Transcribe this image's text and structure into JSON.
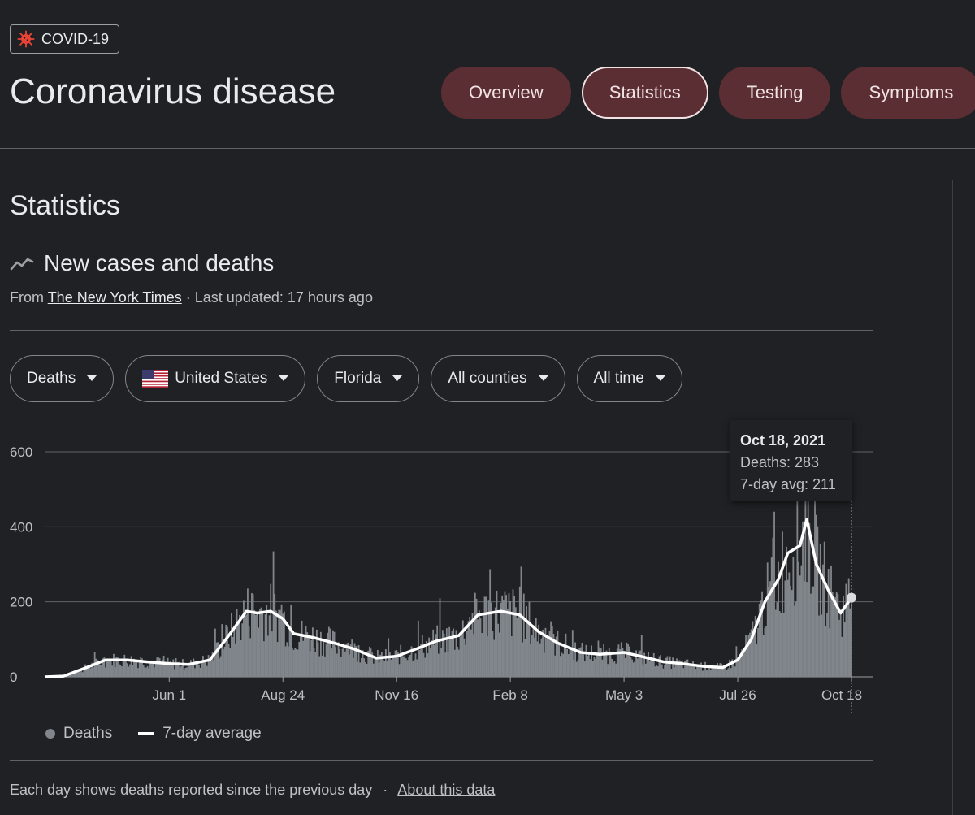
{
  "badge": {
    "label": "COVID-19",
    "icon": "virus-icon",
    "color": "#ea4335"
  },
  "page_title": "Coronavirus disease",
  "tabs": [
    {
      "label": "Overview",
      "active": false
    },
    {
      "label": "Statistics",
      "active": true
    },
    {
      "label": "Testing",
      "active": false
    },
    {
      "label": "Symptoms",
      "active": false
    }
  ],
  "section_title": "Statistics",
  "card": {
    "title": "New cases and deaths",
    "icon": "trending-icon",
    "source_prefix": "From",
    "source_link": "The New York Times",
    "updated": "· Last updated: 17 hours ago"
  },
  "filters": [
    {
      "label": "Deaths",
      "icon": ""
    },
    {
      "label": "United States",
      "icon": "us-flag-icon"
    },
    {
      "label": "Florida",
      "icon": ""
    },
    {
      "label": "All counties",
      "icon": ""
    },
    {
      "label": "All time",
      "icon": ""
    }
  ],
  "tooltip": {
    "date": "Oct 18, 2021",
    "deaths": "Deaths: 283",
    "avg": "7-day avg: 211"
  },
  "legend": {
    "deaths": "Deaths",
    "avg": "7-day average"
  },
  "footer": {
    "text": "Each day shows deaths reported since the previous day",
    "separator": "·",
    "link": "About this data"
  },
  "colors": {
    "bars": "#80868b",
    "line": "#ffffff",
    "tab_bg": "#5b2e34",
    "grid": "#5f6368"
  },
  "chart_data": {
    "type": "bar",
    "title": "",
    "ylim": [
      0,
      600
    ],
    "yticks": [
      0,
      200,
      400,
      600
    ],
    "xticks": [
      "Jun 1",
      "Aug 24",
      "Nov 16",
      "Feb 8",
      "May 3",
      "Jul 26",
      "Oct 18"
    ],
    "x_start": "2020-03-01",
    "x_end": "2021-10-18",
    "series": [
      {
        "name": "7-day average",
        "type": "line",
        "points": [
          [
            "2020-03-01",
            0
          ],
          [
            "2020-03-15",
            2
          ],
          [
            "2020-04-01",
            25
          ],
          [
            "2020-04-15",
            45
          ],
          [
            "2020-05-01",
            45
          ],
          [
            "2020-05-15",
            40
          ],
          [
            "2020-06-01",
            35
          ],
          [
            "2020-06-15",
            33
          ],
          [
            "2020-07-01",
            45
          ],
          [
            "2020-07-15",
            110
          ],
          [
            "2020-07-28",
            175
          ],
          [
            "2020-08-05",
            170
          ],
          [
            "2020-08-15",
            175
          ],
          [
            "2020-08-24",
            155
          ],
          [
            "2020-09-01",
            115
          ],
          [
            "2020-09-15",
            105
          ],
          [
            "2020-10-01",
            90
          ],
          [
            "2020-10-15",
            75
          ],
          [
            "2020-11-01",
            50
          ],
          [
            "2020-11-16",
            55
          ],
          [
            "2020-12-01",
            75
          ],
          [
            "2020-12-15",
            95
          ],
          [
            "2021-01-01",
            110
          ],
          [
            "2021-01-15",
            165
          ],
          [
            "2021-02-01",
            175
          ],
          [
            "2021-02-15",
            165
          ],
          [
            "2021-03-01",
            120
          ],
          [
            "2021-03-15",
            90
          ],
          [
            "2021-04-01",
            65
          ],
          [
            "2021-04-15",
            60
          ],
          [
            "2021-05-03",
            65
          ],
          [
            "2021-05-15",
            55
          ],
          [
            "2021-06-01",
            40
          ],
          [
            "2021-06-15",
            35
          ],
          [
            "2021-07-01",
            28
          ],
          [
            "2021-07-15",
            25
          ],
          [
            "2021-07-26",
            45
          ],
          [
            "2021-08-05",
            100
          ],
          [
            "2021-08-15",
            200
          ],
          [
            "2021-08-25",
            260
          ],
          [
            "2021-09-01",
            330
          ],
          [
            "2021-09-10",
            350
          ],
          [
            "2021-09-15",
            420
          ],
          [
            "2021-09-22",
            300
          ],
          [
            "2021-10-01",
            230
          ],
          [
            "2021-10-10",
            170
          ],
          [
            "2021-10-18",
            211
          ]
        ]
      }
    ]
  }
}
